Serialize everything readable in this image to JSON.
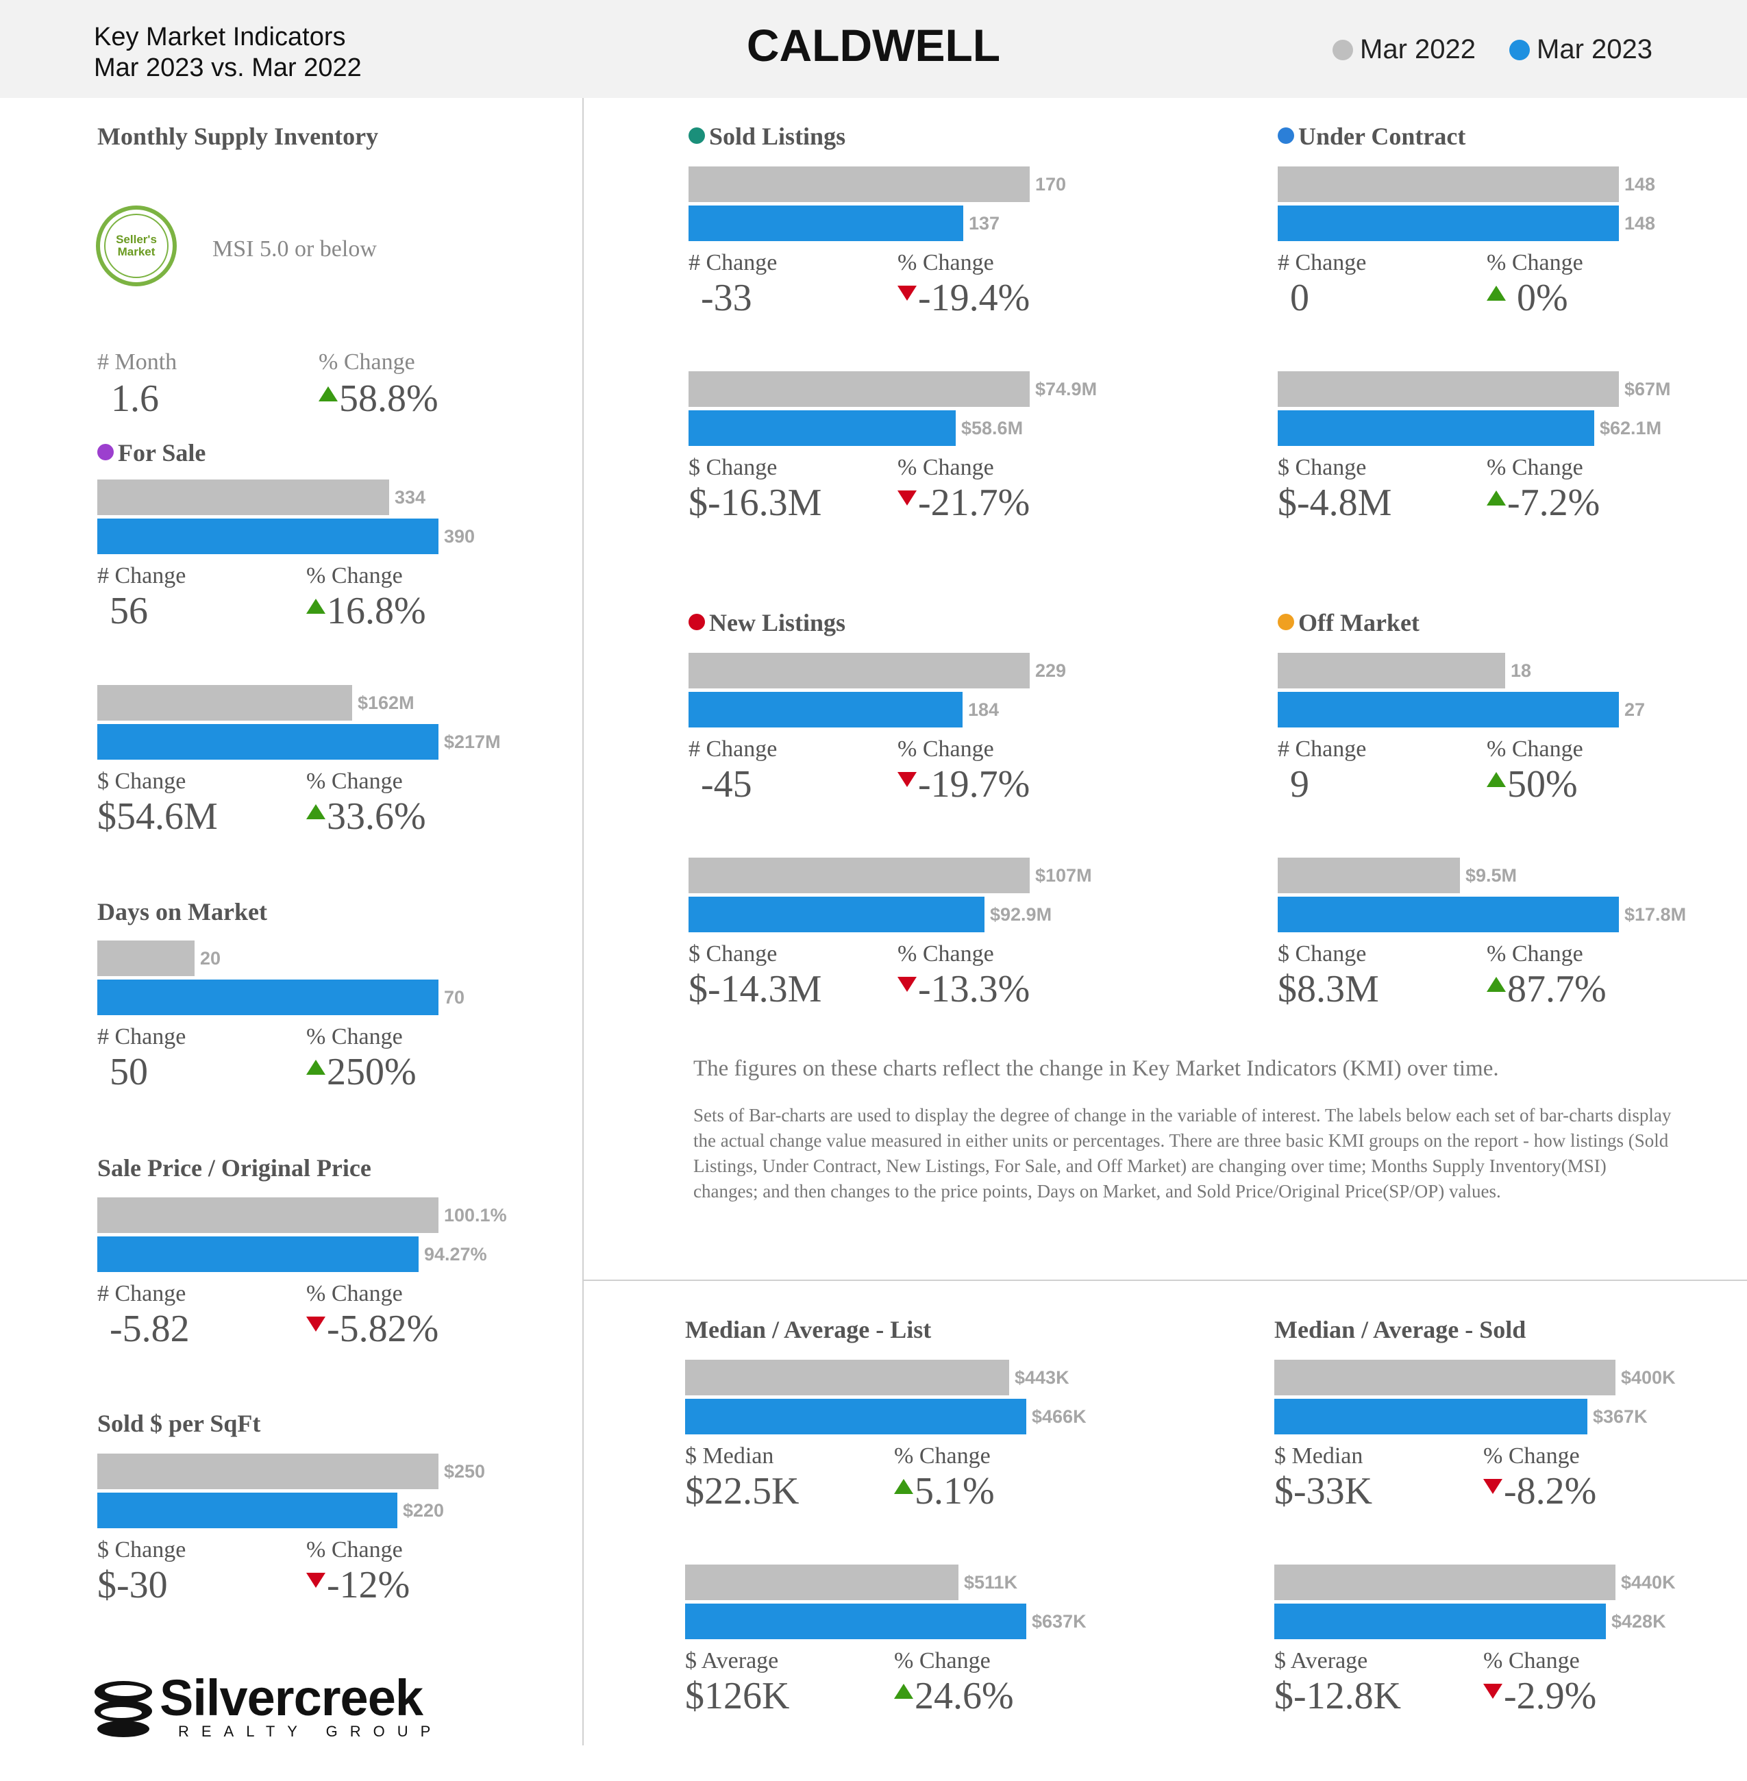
{
  "header": {
    "line1": "Key Market Indicators",
    "line2": "Mar 2023 vs. Mar 2022",
    "title": "CALDWELL",
    "legend": [
      {
        "label": "Mar 2022",
        "color": "#bfbfbf"
      },
      {
        "label": "Mar 2023",
        "color": "#1e90e0"
      }
    ]
  },
  "msi": {
    "title": "Monthly Supply Inventory",
    "badge": "Seller's Market",
    "description": "MSI 5.0 or below",
    "label_a": "# Month",
    "value_a": "1.6",
    "label_b": "% Change",
    "value_b": "58.8%",
    "direction": "up"
  },
  "notes": {
    "line1": "The figures on these charts reflect the change in Key Market Indicators (KMI) over time.",
    "line2": "Sets of Bar-charts are used to display the degree of change in the variable of interest. The labels below each set of bar-charts display the actual change value measured in either units or percentages. There are three basic KMI groups on the report - how listings (Sold Listings, Under Contract, New Listings, For Sale, and Off Market) are changing over time; Months Supply Inventory(MSI) changes; and then changes to the price points, Days on Market, and Sold Price/Original Price(SP/OP) values."
  },
  "logo": {
    "name": "Silvercreek",
    "sub": "REALTY GROUP"
  },
  "chart_data": [
    {
      "type": "bar",
      "id": "for_sale_count",
      "title": "For Sale",
      "dot": "#9c3fce",
      "series": [
        {
          "name": "Mar 2022",
          "values": [
            334
          ]
        },
        {
          "name": "Mar 2023",
          "values": [
            390
          ]
        }
      ],
      "value_labels": [
        "334",
        "390"
      ],
      "label_a": "# Change",
      "value_a": "56",
      "label_b": "% Change",
      "value_b": "16.8%",
      "direction": "up"
    },
    {
      "type": "bar",
      "id": "for_sale_volume",
      "series": [
        {
          "name": "Mar 2022",
          "values": [
            162
          ]
        },
        {
          "name": "Mar 2023",
          "values": [
            217
          ]
        }
      ],
      "value_labels": [
        "$162M",
        "$217M"
      ],
      "label_a": "$ Change",
      "value_a": "$54.6M",
      "label_b": "% Change",
      "value_b": "33.6%",
      "direction": "up"
    },
    {
      "type": "bar",
      "id": "days_on_market",
      "title": "Days on Market",
      "series": [
        {
          "name": "Mar 2022",
          "values": [
            20
          ]
        },
        {
          "name": "Mar 2023",
          "values": [
            70
          ]
        }
      ],
      "value_labels": [
        "20",
        "70"
      ],
      "label_a": "# Change",
      "value_a": "50",
      "label_b": "% Change",
      "value_b": "250%",
      "direction": "up"
    },
    {
      "type": "bar",
      "id": "sp_op",
      "title": "Sale Price / Original Price",
      "series": [
        {
          "name": "Mar 2022",
          "values": [
            100.1
          ]
        },
        {
          "name": "Mar 2023",
          "values": [
            94.27
          ]
        }
      ],
      "value_labels": [
        "100.1%",
        "94.27%"
      ],
      "label_a": "# Change",
      "value_a": "-5.82",
      "label_b": "% Change",
      "value_b": "-5.82%",
      "direction": "down"
    },
    {
      "type": "bar",
      "id": "sold_per_sqft",
      "title": "Sold $ per SqFt",
      "series": [
        {
          "name": "Mar 2022",
          "values": [
            250
          ]
        },
        {
          "name": "Mar 2023",
          "values": [
            220
          ]
        }
      ],
      "value_labels": [
        "$250",
        "$220"
      ],
      "label_a": "$ Change",
      "value_a": "$-30",
      "label_b": "% Change",
      "value_b": "-12%",
      "direction": "down"
    },
    {
      "type": "bar",
      "id": "sold_count",
      "title": "Sold Listings",
      "dot": "#1a8f7a",
      "series": [
        {
          "name": "Mar 2022",
          "values": [
            170
          ]
        },
        {
          "name": "Mar 2023",
          "values": [
            137
          ]
        }
      ],
      "value_labels": [
        "170",
        "137"
      ],
      "label_a": "# Change",
      "value_a": "-33",
      "label_b": "% Change",
      "value_b": "-19.4%",
      "direction": "down"
    },
    {
      "type": "bar",
      "id": "sold_volume",
      "series": [
        {
          "name": "Mar 2022",
          "values": [
            74.9
          ]
        },
        {
          "name": "Mar 2023",
          "values": [
            58.6
          ]
        }
      ],
      "value_labels": [
        "$74.9M",
        "$58.6M"
      ],
      "label_a": "$ Change",
      "value_a": "$-16.3M",
      "label_b": "% Change",
      "value_b": "-21.7%",
      "direction": "down"
    },
    {
      "type": "bar",
      "id": "uc_count",
      "title": "Under Contract",
      "dot": "#2b7fd8",
      "series": [
        {
          "name": "Mar 2022",
          "values": [
            148
          ]
        },
        {
          "name": "Mar 2023",
          "values": [
            148
          ]
        }
      ],
      "value_labels": [
        "148",
        "148"
      ],
      "label_a": "# Change",
      "value_a": "0",
      "label_b": "% Change",
      "value_b": " 0%",
      "direction": "up"
    },
    {
      "type": "bar",
      "id": "uc_volume",
      "series": [
        {
          "name": "Mar 2022",
          "values": [
            67
          ]
        },
        {
          "name": "Mar 2023",
          "values": [
            62.1
          ]
        }
      ],
      "value_labels": [
        "$67M",
        "$62.1M"
      ],
      "label_a": "$ Change",
      "value_a": "$-4.8M",
      "label_b": "% Change",
      "value_b": "-7.2%",
      "direction": "up"
    },
    {
      "type": "bar",
      "id": "new_count",
      "title": "New Listings",
      "dot": "#d0021b",
      "series": [
        {
          "name": "Mar 2022",
          "values": [
            229
          ]
        },
        {
          "name": "Mar 2023",
          "values": [
            184
          ]
        }
      ],
      "value_labels": [
        "229",
        "184"
      ],
      "label_a": "# Change",
      "value_a": "-45",
      "label_b": "% Change",
      "value_b": "-19.7%",
      "direction": "down"
    },
    {
      "type": "bar",
      "id": "new_volume",
      "series": [
        {
          "name": "Mar 2022",
          "values": [
            107
          ]
        },
        {
          "name": "Mar 2023",
          "values": [
            92.9
          ]
        }
      ],
      "value_labels": [
        "$107M",
        "$92.9M"
      ],
      "label_a": "$ Change",
      "value_a": "$-14.3M",
      "label_b": "% Change",
      "value_b": "-13.3%",
      "direction": "down"
    },
    {
      "type": "bar",
      "id": "off_count",
      "title": "Off Market",
      "dot": "#f0a020",
      "series": [
        {
          "name": "Mar 2022",
          "values": [
            18
          ]
        },
        {
          "name": "Mar 2023",
          "values": [
            27
          ]
        }
      ],
      "value_labels": [
        "18",
        "27"
      ],
      "label_a": "# Change",
      "value_a": "9",
      "label_b": "% Change",
      "value_b": "50%",
      "direction": "up"
    },
    {
      "type": "bar",
      "id": "off_volume",
      "series": [
        {
          "name": "Mar 2022",
          "values": [
            9.5
          ]
        },
        {
          "name": "Mar 2023",
          "values": [
            17.8
          ]
        }
      ],
      "value_labels": [
        "$9.5M",
        "$17.8M"
      ],
      "label_a": "$ Change",
      "value_a": "$8.3M",
      "label_b": "% Change",
      "value_b": "87.7%",
      "direction": "up"
    },
    {
      "type": "bar",
      "id": "list_median",
      "title": "Median / Average - List",
      "series": [
        {
          "name": "Mar 2022",
          "values": [
            443
          ]
        },
        {
          "name": "Mar 2023",
          "values": [
            466
          ]
        }
      ],
      "value_labels": [
        "$443K",
        "$466K"
      ],
      "label_a": "$ Median",
      "value_a": "$22.5K",
      "label_b": "% Change",
      "value_b": "5.1%",
      "direction": "up"
    },
    {
      "type": "bar",
      "id": "list_average",
      "series": [
        {
          "name": "Mar 2022",
          "values": [
            511
          ]
        },
        {
          "name": "Mar 2023",
          "values": [
            637
          ]
        }
      ],
      "value_labels": [
        "$511K",
        "$637K"
      ],
      "label_a": "$ Average",
      "value_a": "$126K",
      "label_b": "% Change",
      "value_b": "24.6%",
      "direction": "up"
    },
    {
      "type": "bar",
      "id": "sold_median",
      "title": "Median / Average - Sold",
      "series": [
        {
          "name": "Mar 2022",
          "values": [
            400
          ]
        },
        {
          "name": "Mar 2023",
          "values": [
            367
          ]
        }
      ],
      "value_labels": [
        "$400K",
        "$367K"
      ],
      "label_a": "$ Median",
      "value_a": "$-33K",
      "label_b": "% Change",
      "value_b": "-8.2%",
      "direction": "down"
    },
    {
      "type": "bar",
      "id": "sold_average",
      "series": [
        {
          "name": "Mar 2022",
          "values": [
            440
          ]
        },
        {
          "name": "Mar 2023",
          "values": [
            428
          ]
        }
      ],
      "value_labels": [
        "$440K",
        "$428K"
      ],
      "label_a": "$ Average",
      "value_a": "$-12.8K",
      "label_b": "% Change",
      "value_b": "-2.9%",
      "direction": "down"
    }
  ]
}
